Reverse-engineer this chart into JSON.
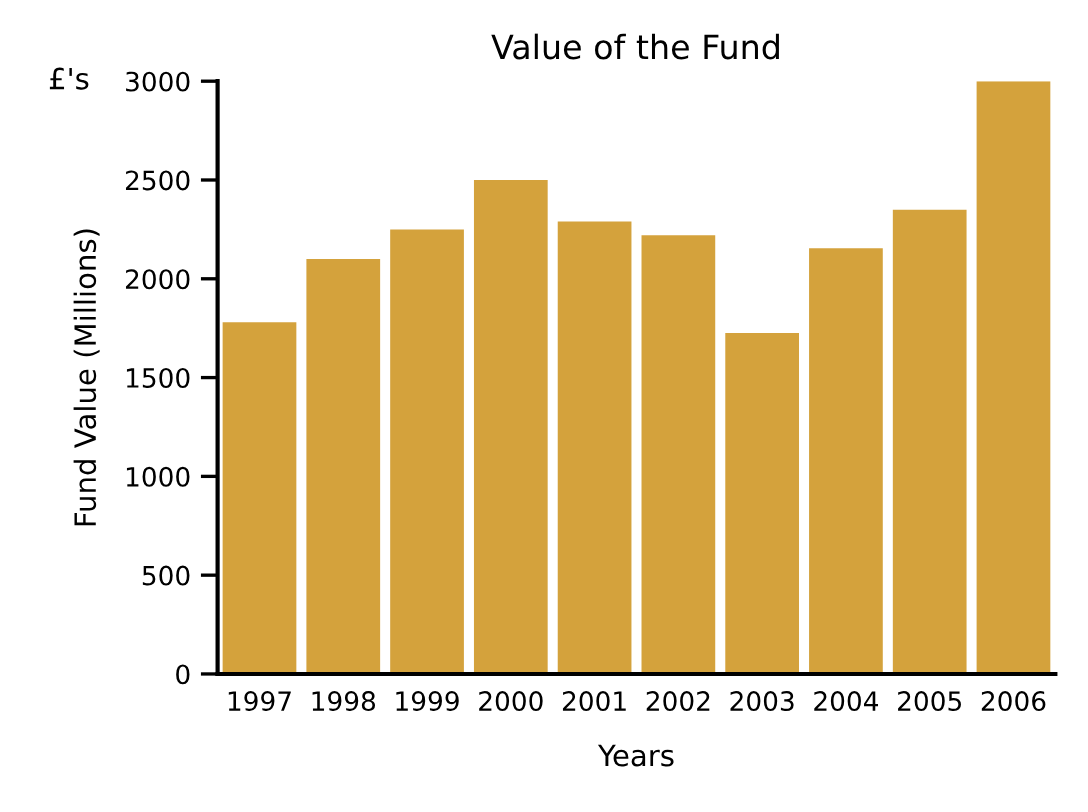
{
  "chart_data": {
    "type": "bar",
    "title": "Value of the Fund",
    "xlabel": "Years",
    "ylabel": "Fund Value (Millions)",
    "annotations": [
      "£'s"
    ],
    "categories": [
      "1997",
      "1998",
      "1999",
      "2000",
      "2001",
      "2002",
      "2003",
      "2004",
      "2005",
      "2006"
    ],
    "values": [
      1780,
      2100,
      2250,
      2500,
      2290,
      2220,
      1725,
      2155,
      2350,
      3000
    ],
    "color": "#d4a23c",
    "ylim": [
      0,
      3000
    ],
    "yticks": [
      0,
      500,
      1000,
      1500,
      2000,
      2500,
      3000
    ],
    "grid": false,
    "legend": false
  }
}
